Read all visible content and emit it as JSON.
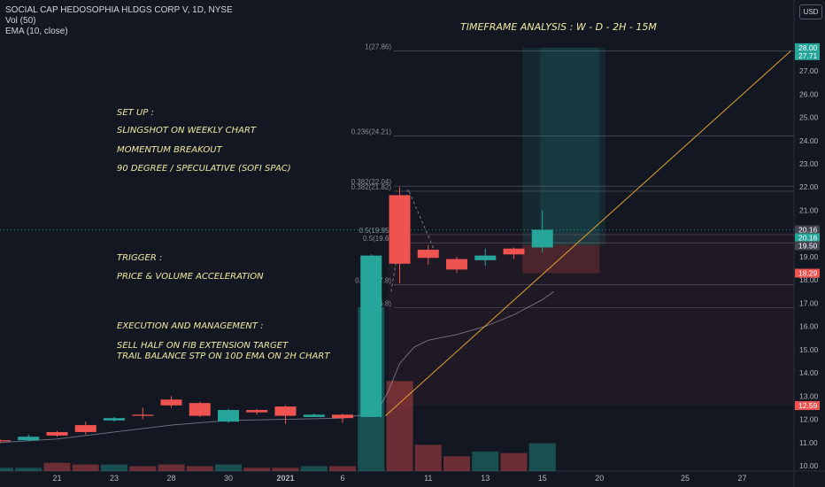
{
  "header": {
    "symbol": "SOCIAL CAP HEDOSOPHIA HLDGS CORP V, 1D, NYSE",
    "vol": "Vol (50)",
    "ema": "EMA (10, close)",
    "currency": "USD"
  },
  "annotations": {
    "timeframe": "TIMEFRAME ANALYSIS  : W - D - 2H - 15M",
    "setup_title": "SET UP :",
    "setup_1": "SLINGSHOT ON WEEKLY CHART",
    "setup_2": "MOMENTUM BREAKOUT",
    "setup_3": "90 DEGREE / SPECULATIVE (SOFI SPAC)",
    "trigger_title": "TRIGGER :",
    "trigger_1": "PRICE & VOLUME ACCELERATION",
    "exec_title": "EXECUTION AND MANAGEMENT :",
    "exec_1": "SELL HALF ON FIB EXTENSION TARGET",
    "exec_2": "TRAIL BALANCE STP ON 10D EMA ON 2H CHART"
  },
  "chart_data": {
    "type": "candlestick",
    "x_ticks": [
      {
        "i": 2,
        "label": "21"
      },
      {
        "i": 4,
        "label": "23"
      },
      {
        "i": 6,
        "label": "28"
      },
      {
        "i": 8,
        "label": "30"
      },
      {
        "i": 10,
        "label": "2021"
      },
      {
        "i": 12,
        "label": "6"
      },
      {
        "i": 15,
        "label": "11"
      },
      {
        "i": 17,
        "label": "13"
      },
      {
        "i": 19,
        "label": "15"
      },
      {
        "i": 21,
        "label": "20"
      },
      {
        "i": 24,
        "label": "25"
      },
      {
        "i": 26,
        "label": "27"
      }
    ],
    "y_ticks": [
      10,
      11,
      12,
      13,
      14,
      15,
      16,
      17,
      18,
      19,
      20,
      21,
      22,
      23,
      24,
      25,
      26,
      27
    ],
    "ylim": [
      9.85,
      28.9
    ],
    "candles": [
      {
        "i": 0,
        "o": 11.1,
        "c": 11.05,
        "h": 11.15,
        "l": 10.95
      },
      {
        "i": 1,
        "o": 11.1,
        "c": 11.25,
        "h": 11.35,
        "l": 11.05
      },
      {
        "i": 2,
        "o": 11.45,
        "c": 11.3,
        "h": 11.5,
        "l": 11.25
      },
      {
        "i": 3,
        "o": 11.75,
        "c": 11.45,
        "h": 11.9,
        "l": 11.35
      },
      {
        "i": 4,
        "o": 11.95,
        "c": 12.05,
        "h": 12.1,
        "l": 11.9
      },
      {
        "i": 5,
        "o": 12.2,
        "c": 12.15,
        "h": 12.5,
        "l": 12.0
      },
      {
        "i": 6,
        "o": 12.85,
        "c": 12.6,
        "h": 13.0,
        "l": 12.5
      },
      {
        "i": 7,
        "o": 12.7,
        "c": 12.15,
        "h": 12.75,
        "l": 12.1
      },
      {
        "i": 8,
        "o": 11.9,
        "c": 12.4,
        "h": 12.45,
        "l": 11.85
      },
      {
        "i": 9,
        "o": 12.4,
        "c": 12.3,
        "h": 12.45,
        "l": 12.2
      },
      {
        "i": 10,
        "o": 12.55,
        "c": 12.15,
        "h": 12.6,
        "l": 11.8
      },
      {
        "i": 11,
        "o": 12.1,
        "c": 12.2,
        "h": 12.25,
        "l": 12.1
      },
      {
        "i": 12,
        "o": 12.2,
        "c": 12.05,
        "h": 12.25,
        "l": 11.85
      },
      {
        "i": 13,
        "o": 12.1,
        "c": 19.05,
        "h": 19.1,
        "l": 12.1
      },
      {
        "i": 14,
        "o": 21.65,
        "c": 18.7,
        "h": 22.0,
        "l": 17.85
      },
      {
        "i": 15,
        "o": 19.3,
        "c": 18.95,
        "h": 19.5,
        "l": 18.65
      },
      {
        "i": 16,
        "o": 18.9,
        "c": 18.45,
        "h": 19.0,
        "l": 18.3
      },
      {
        "i": 17,
        "o": 18.85,
        "c": 19.05,
        "h": 19.35,
        "l": 18.6
      },
      {
        "i": 18,
        "o": 19.35,
        "c": 19.1,
        "h": 19.4,
        "l": 18.9
      },
      {
        "i": 19,
        "o": 19.4,
        "c": 20.16,
        "h": 21.0,
        "l": 19.2
      }
    ],
    "ema": [
      [
        0,
        11.0
      ],
      [
        2,
        11.15
      ],
      [
        4,
        11.45
      ],
      [
        6,
        11.75
      ],
      [
        8,
        11.95
      ],
      [
        10,
        12.0
      ],
      [
        12,
        12.05
      ],
      [
        13.2,
        12.3
      ],
      [
        13.6,
        13.2
      ],
      [
        14,
        14.4
      ],
      [
        14.5,
        15.1
      ],
      [
        15,
        15.4
      ],
      [
        16,
        15.65
      ],
      [
        17,
        16.0
      ],
      [
        18,
        16.5
      ],
      [
        19,
        17.15
      ],
      [
        19.4,
        17.5
      ]
    ],
    "volume": [
      {
        "i": 0,
        "v": 0.02,
        "up": true
      },
      {
        "i": 1,
        "v": 0.02,
        "up": true
      },
      {
        "i": 2,
        "v": 0.05,
        "up": false
      },
      {
        "i": 3,
        "v": 0.04,
        "up": false
      },
      {
        "i": 4,
        "v": 0.04,
        "up": true
      },
      {
        "i": 5,
        "v": 0.03,
        "up": false
      },
      {
        "i": 6,
        "v": 0.04,
        "up": false
      },
      {
        "i": 7,
        "v": 0.03,
        "up": false
      },
      {
        "i": 8,
        "v": 0.04,
        "up": true
      },
      {
        "i": 9,
        "v": 0.02,
        "up": false
      },
      {
        "i": 10,
        "v": 0.02,
        "up": false
      },
      {
        "i": 11,
        "v": 0.03,
        "up": true
      },
      {
        "i": 12,
        "v": 0.03,
        "up": false
      },
      {
        "i": 13,
        "v": 1.0,
        "up": true
      },
      {
        "i": 14,
        "v": 0.55,
        "up": false
      },
      {
        "i": 15,
        "v": 0.16,
        "up": false
      },
      {
        "i": 16,
        "v": 0.09,
        "up": false
      },
      {
        "i": 17,
        "v": 0.12,
        "up": true
      },
      {
        "i": 18,
        "v": 0.11,
        "up": false
      },
      {
        "i": 19,
        "v": 0.17,
        "up": true
      }
    ],
    "fib_levels": [
      {
        "price": 27.86,
        "label": "1(27.86)"
      },
      {
        "price": 24.21,
        "label": "0.236(24.21)"
      },
      {
        "price": 21.82,
        "label": "0.382(21.82)"
      },
      {
        "price": 22.04,
        "label": "0.382(22.04)"
      },
      {
        "price": 19.95,
        "label": "0.5(19.95)"
      },
      {
        "price": 19.6,
        "label": "0.5(19.6)"
      },
      {
        "price": 17.8,
        "label": "0.382(17.8)"
      },
      {
        "price": 16.8,
        "label": "0.5(16.8)"
      }
    ],
    "position": {
      "i_start": 18.3,
      "i_end": 21.0,
      "target": 28.0,
      "entry": 19.5,
      "stop": 18.29
    },
    "trend_line": {
      "from": [
        13.5,
        12.15
      ],
      "to": [
        27.7,
        27.86
      ]
    },
    "dashed_path": [
      [
        13.7,
        17.5
      ],
      [
        14.3,
        21.9
      ],
      [
        15.0,
        19.9
      ],
      [
        15.3,
        19.0
      ]
    ],
    "price_labels": [
      {
        "value": 28.0,
        "text": "28.00",
        "color": "#26a69a"
      },
      {
        "value": 27.71,
        "text": "27.71",
        "color": "#26a69a"
      },
      {
        "value": 20.16,
        "text": "20.16",
        "color": "#434651"
      },
      {
        "value": 20.16,
        "text": "20.16",
        "color": "#26a69a",
        "offset": 1
      },
      {
        "value": 19.5,
        "text": "19.50",
        "color": "#434651"
      },
      {
        "value": 18.29,
        "text": "18.29",
        "color": "#ef5350"
      },
      {
        "value": 12.59,
        "text": "12.59",
        "color": "#ef5350"
      }
    ],
    "last_price": 20.16
  }
}
